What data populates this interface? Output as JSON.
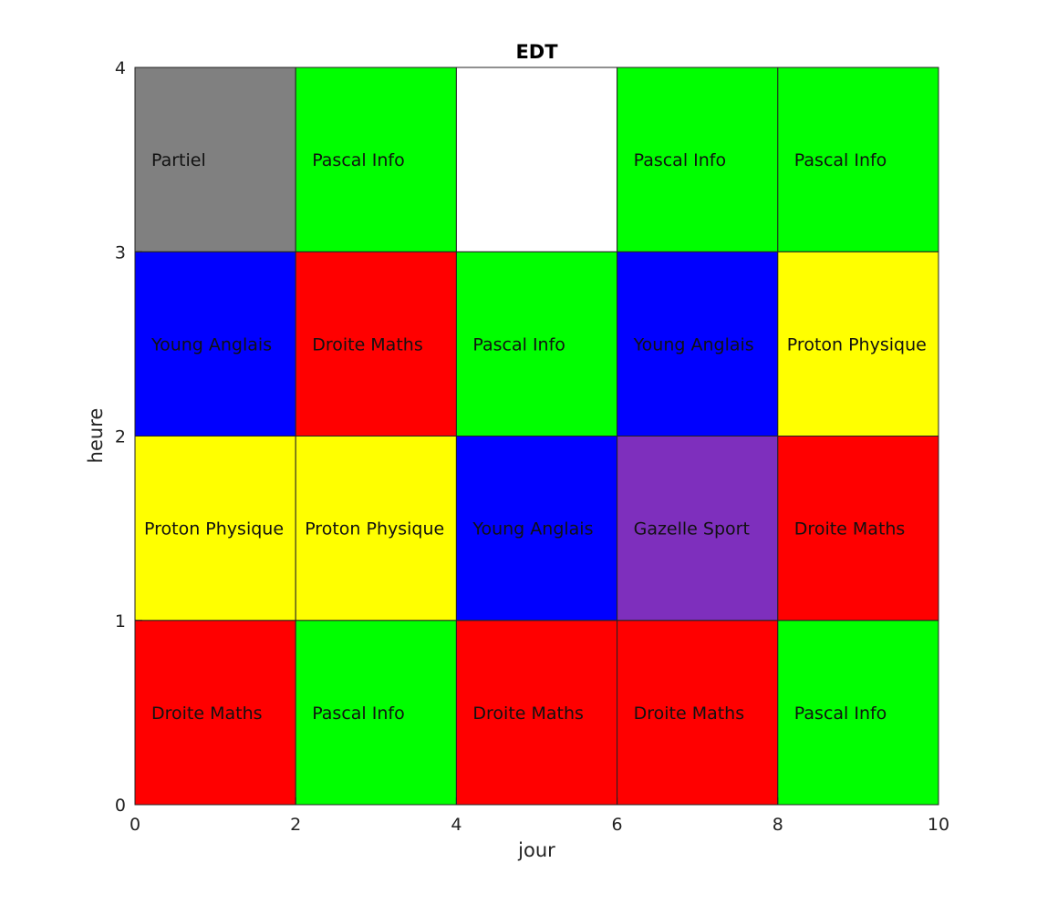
{
  "chart_data": {
    "type": "heatmap",
    "title": "EDT",
    "xlabel": "jour",
    "ylabel": "heure",
    "xlim": [
      0,
      10
    ],
    "ylim": [
      0,
      4
    ],
    "xticks": [
      "0",
      "2",
      "4",
      "6",
      "8",
      "10"
    ],
    "yticks": [
      "0",
      "1",
      "2",
      "3",
      "4"
    ],
    "grid": false,
    "colors": {
      "Droite Maths": "#ff0000",
      "Pascal Info": "#00ff00",
      "Proton Physique": "#ffff00",
      "Young Anglais": "#0000ff",
      "Gazelle Sport": "#7e2fbd",
      "Partiel": "#808080",
      "empty": "#ffffff"
    },
    "cells": [
      {
        "x0": 0,
        "x1": 2,
        "y0": 0,
        "y1": 1,
        "label": "Droite Maths"
      },
      {
        "x0": 2,
        "x1": 4,
        "y0": 0,
        "y1": 1,
        "label": "Pascal Info"
      },
      {
        "x0": 4,
        "x1": 6,
        "y0": 0,
        "y1": 1,
        "label": "Droite Maths"
      },
      {
        "x0": 6,
        "x1": 8,
        "y0": 0,
        "y1": 1,
        "label": "Droite Maths"
      },
      {
        "x0": 8,
        "x1": 10,
        "y0": 0,
        "y1": 1,
        "label": "Pascal Info"
      },
      {
        "x0": 0,
        "x1": 2,
        "y0": 1,
        "y1": 2,
        "label": "Proton Physique"
      },
      {
        "x0": 2,
        "x1": 4,
        "y0": 1,
        "y1": 2,
        "label": "Proton Physique"
      },
      {
        "x0": 4,
        "x1": 6,
        "y0": 1,
        "y1": 2,
        "label": "Young Anglais"
      },
      {
        "x0": 6,
        "x1": 8,
        "y0": 1,
        "y1": 2,
        "label": "Gazelle Sport"
      },
      {
        "x0": 8,
        "x1": 10,
        "y0": 1,
        "y1": 2,
        "label": "Droite Maths"
      },
      {
        "x0": 0,
        "x1": 2,
        "y0": 2,
        "y1": 3,
        "label": "Young Anglais"
      },
      {
        "x0": 2,
        "x1": 4,
        "y0": 2,
        "y1": 3,
        "label": "Droite Maths"
      },
      {
        "x0": 4,
        "x1": 6,
        "y0": 2,
        "y1": 3,
        "label": "Pascal Info"
      },
      {
        "x0": 6,
        "x1": 8,
        "y0": 2,
        "y1": 3,
        "label": "Young Anglais"
      },
      {
        "x0": 8,
        "x1": 10,
        "y0": 2,
        "y1": 3,
        "label": "Proton Physique"
      },
      {
        "x0": 0,
        "x1": 2,
        "y0": 3,
        "y1": 4,
        "label": "Partiel"
      },
      {
        "x0": 2,
        "x1": 4,
        "y0": 3,
        "y1": 4,
        "label": "Pascal Info"
      },
      {
        "x0": 4,
        "x1": 6,
        "y0": 3,
        "y1": 4,
        "label": ""
      },
      {
        "x0": 6,
        "x1": 8,
        "y0": 3,
        "y1": 4,
        "label": "Pascal Info"
      },
      {
        "x0": 8,
        "x1": 10,
        "y0": 3,
        "y1": 4,
        "label": "Pascal Info"
      }
    ]
  }
}
